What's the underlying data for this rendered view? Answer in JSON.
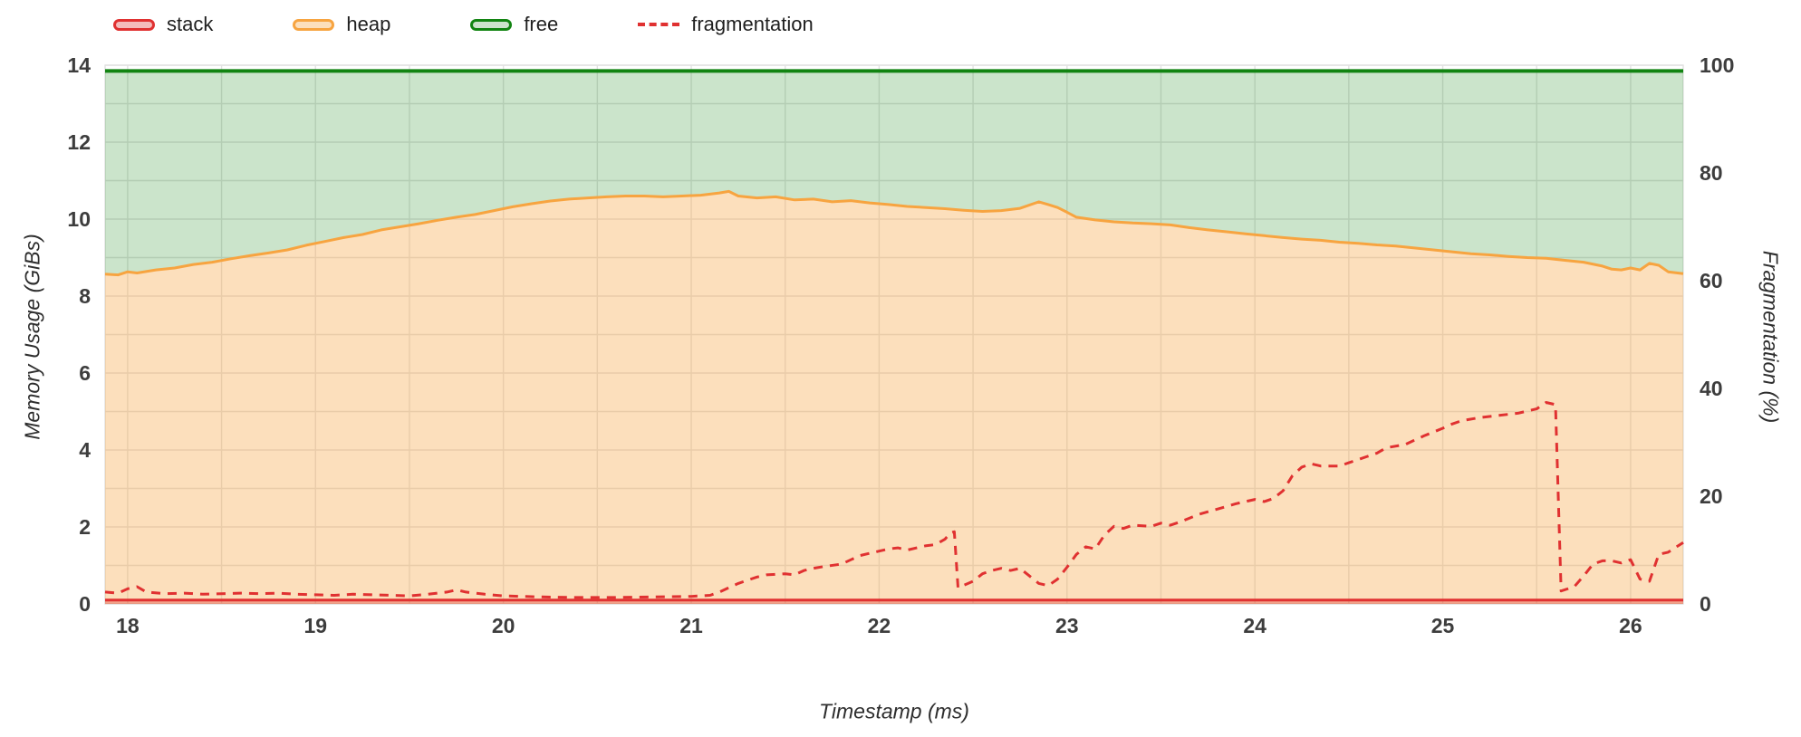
{
  "colors": {
    "grid": "#e2e2e2",
    "tick_label": "#3d3d3d",
    "stack_red": "#e03131",
    "heap_orange": "#f7a440",
    "free_green": "#128412",
    "fragmentation_red": "#e03131"
  },
  "legend": {
    "items": [
      {
        "label": "stack",
        "style": "area",
        "color": "#e03131",
        "fill": "#f4bcbc"
      },
      {
        "label": "heap",
        "style": "area",
        "color": "#f7a440",
        "fill": "#fcdfbc"
      },
      {
        "label": "free",
        "style": "area",
        "color": "#128412",
        "fill": "#cde3cd"
      },
      {
        "label": "fragmentation",
        "style": "dashed",
        "color": "#e03131",
        "fill": "none"
      }
    ]
  },
  "chart_data": {
    "type": "area",
    "title": "",
    "x_axis": {
      "title": "Timestamp (ms)",
      "range": [
        17.88,
        26.28
      ],
      "ticks": [
        18,
        19,
        20,
        21,
        22,
        23,
        24,
        25,
        26
      ],
      "minor_grid_step": 0.5
    },
    "y_axis_left": {
      "title": "Memory Usage (GiBs)",
      "range": [
        0,
        14
      ],
      "ticks": [
        0,
        2,
        4,
        6,
        8,
        10,
        12,
        14
      ],
      "grid_step": 1
    },
    "y_axis_right": {
      "title": "Fragmentation (%)",
      "range": [
        0,
        100
      ],
      "ticks": [
        0,
        20,
        40,
        60,
        80,
        100
      ]
    },
    "grid": true,
    "legend_position": "top-left",
    "series": [
      {
        "name": "stack",
        "type": "area",
        "axis": "left",
        "color": "#e03131",
        "fill": "rgba(224,49,49,0.35)",
        "line_width": 3,
        "points": [
          [
            17.88,
            0.1
          ],
          [
            26.28,
            0.1
          ]
        ]
      },
      {
        "name": "heap",
        "type": "area",
        "axis": "left",
        "color": "#f7a440",
        "fill": "rgba(247,164,64,0.35)",
        "line_width": 3,
        "points": [
          [
            17.88,
            8.57
          ],
          [
            17.95,
            8.55
          ],
          [
            18.0,
            8.63
          ],
          [
            18.05,
            8.6
          ],
          [
            18.15,
            8.68
          ],
          [
            18.25,
            8.73
          ],
          [
            18.35,
            8.82
          ],
          [
            18.45,
            8.88
          ],
          [
            18.55,
            8.97
          ],
          [
            18.65,
            9.05
          ],
          [
            18.75,
            9.12
          ],
          [
            18.85,
            9.2
          ],
          [
            18.95,
            9.32
          ],
          [
            19.05,
            9.42
          ],
          [
            19.15,
            9.52
          ],
          [
            19.25,
            9.6
          ],
          [
            19.35,
            9.72
          ],
          [
            19.45,
            9.8
          ],
          [
            19.55,
            9.88
          ],
          [
            19.65,
            9.97
          ],
          [
            19.75,
            10.05
          ],
          [
            19.85,
            10.12
          ],
          [
            19.95,
            10.22
          ],
          [
            20.05,
            10.32
          ],
          [
            20.15,
            10.4
          ],
          [
            20.25,
            10.47
          ],
          [
            20.35,
            10.52
          ],
          [
            20.45,
            10.55
          ],
          [
            20.55,
            10.58
          ],
          [
            20.65,
            10.6
          ],
          [
            20.75,
            10.6
          ],
          [
            20.85,
            10.58
          ],
          [
            20.95,
            10.6
          ],
          [
            21.05,
            10.62
          ],
          [
            21.15,
            10.68
          ],
          [
            21.2,
            10.72
          ],
          [
            21.25,
            10.6
          ],
          [
            21.35,
            10.55
          ],
          [
            21.45,
            10.58
          ],
          [
            21.55,
            10.5
          ],
          [
            21.65,
            10.52
          ],
          [
            21.75,
            10.45
          ],
          [
            21.85,
            10.48
          ],
          [
            21.95,
            10.42
          ],
          [
            22.05,
            10.38
          ],
          [
            22.15,
            10.33
          ],
          [
            22.25,
            10.3
          ],
          [
            22.35,
            10.27
          ],
          [
            22.45,
            10.23
          ],
          [
            22.55,
            10.2
          ],
          [
            22.65,
            10.22
          ],
          [
            22.75,
            10.28
          ],
          [
            22.85,
            10.45
          ],
          [
            22.9,
            10.38
          ],
          [
            22.95,
            10.3
          ],
          [
            23.0,
            10.18
          ],
          [
            23.05,
            10.05
          ],
          [
            23.15,
            9.98
          ],
          [
            23.25,
            9.93
          ],
          [
            23.35,
            9.9
          ],
          [
            23.45,
            9.88
          ],
          [
            23.55,
            9.85
          ],
          [
            23.65,
            9.78
          ],
          [
            23.75,
            9.72
          ],
          [
            23.85,
            9.67
          ],
          [
            23.95,
            9.62
          ],
          [
            24.05,
            9.57
          ],
          [
            24.15,
            9.52
          ],
          [
            24.25,
            9.48
          ],
          [
            24.35,
            9.45
          ],
          [
            24.45,
            9.4
          ],
          [
            24.55,
            9.37
          ],
          [
            24.65,
            9.33
          ],
          [
            24.75,
            9.3
          ],
          [
            24.85,
            9.25
          ],
          [
            24.95,
            9.2
          ],
          [
            25.05,
            9.15
          ],
          [
            25.15,
            9.1
          ],
          [
            25.25,
            9.07
          ],
          [
            25.35,
            9.03
          ],
          [
            25.45,
            9.0
          ],
          [
            25.55,
            8.98
          ],
          [
            25.65,
            8.93
          ],
          [
            25.75,
            8.88
          ],
          [
            25.85,
            8.78
          ],
          [
            25.9,
            8.7
          ],
          [
            25.95,
            8.68
          ],
          [
            26.0,
            8.73
          ],
          [
            26.05,
            8.68
          ],
          [
            26.1,
            8.85
          ],
          [
            26.15,
            8.8
          ],
          [
            26.2,
            8.63
          ],
          [
            26.28,
            8.58
          ]
        ]
      },
      {
        "name": "free",
        "type": "area_band",
        "axis": "left",
        "color": "#128412",
        "fill": "rgba(18,132,18,0.22)",
        "line_width": 4,
        "note": "band between constant total memory and heap series",
        "top_points": [
          [
            17.88,
            13.85
          ],
          [
            26.28,
            13.85
          ]
        ]
      },
      {
        "name": "fragmentation",
        "type": "dashed_line",
        "axis": "right",
        "color": "#e03131",
        "line_width": 3,
        "points": [
          [
            17.88,
            2.2
          ],
          [
            17.95,
            2.0
          ],
          [
            18.0,
            2.8
          ],
          [
            18.05,
            3.2
          ],
          [
            18.1,
            2.2
          ],
          [
            18.2,
            1.9
          ],
          [
            18.3,
            2.0
          ],
          [
            18.4,
            1.8
          ],
          [
            18.5,
            1.9
          ],
          [
            18.6,
            2.0
          ],
          [
            18.7,
            1.9
          ],
          [
            18.8,
            2.0
          ],
          [
            18.9,
            1.8
          ],
          [
            19.0,
            1.7
          ],
          [
            19.1,
            1.6
          ],
          [
            19.2,
            1.8
          ],
          [
            19.3,
            1.7
          ],
          [
            19.4,
            1.6
          ],
          [
            19.5,
            1.5
          ],
          [
            19.6,
            1.8
          ],
          [
            19.7,
            2.2
          ],
          [
            19.75,
            2.6
          ],
          [
            19.8,
            2.2
          ],
          [
            19.9,
            1.8
          ],
          [
            20.0,
            1.5
          ],
          [
            20.1,
            1.4
          ],
          [
            20.2,
            1.3
          ],
          [
            20.4,
            1.2
          ],
          [
            20.6,
            1.2
          ],
          [
            20.8,
            1.3
          ],
          [
            21.0,
            1.4
          ],
          [
            21.1,
            1.6
          ],
          [
            21.15,
            2.2
          ],
          [
            21.2,
            3.0
          ],
          [
            21.25,
            3.8
          ],
          [
            21.3,
            4.4
          ],
          [
            21.35,
            5.0
          ],
          [
            21.4,
            5.4
          ],
          [
            21.5,
            5.6
          ],
          [
            21.55,
            5.4
          ],
          [
            21.6,
            6.2
          ],
          [
            21.65,
            6.6
          ],
          [
            21.7,
            6.9
          ],
          [
            21.8,
            7.4
          ],
          [
            21.85,
            8.2
          ],
          [
            21.9,
            9.0
          ],
          [
            21.95,
            9.4
          ],
          [
            22.0,
            9.8
          ],
          [
            22.05,
            10.2
          ],
          [
            22.1,
            10.4
          ],
          [
            22.15,
            10.0
          ],
          [
            22.2,
            10.4
          ],
          [
            22.25,
            10.8
          ],
          [
            22.3,
            11.0
          ],
          [
            22.35,
            12.0
          ],
          [
            22.38,
            13.2
          ],
          [
            22.4,
            13.4
          ],
          [
            22.42,
            3.0
          ],
          [
            22.5,
            4.2
          ],
          [
            22.55,
            5.6
          ],
          [
            22.6,
            6.2
          ],
          [
            22.65,
            6.6
          ],
          [
            22.7,
            6.2
          ],
          [
            22.75,
            6.6
          ],
          [
            22.8,
            5.2
          ],
          [
            22.85,
            3.8
          ],
          [
            22.9,
            3.4
          ],
          [
            22.95,
            4.6
          ],
          [
            23.0,
            6.8
          ],
          [
            23.05,
            9.2
          ],
          [
            23.1,
            10.6
          ],
          [
            23.15,
            10.2
          ],
          [
            23.2,
            12.8
          ],
          [
            23.25,
            14.4
          ],
          [
            23.3,
            14.0
          ],
          [
            23.35,
            14.6
          ],
          [
            23.45,
            14.4
          ],
          [
            23.5,
            15.0
          ],
          [
            23.55,
            14.6
          ],
          [
            23.6,
            15.2
          ],
          [
            23.7,
            16.6
          ],
          [
            23.8,
            17.6
          ],
          [
            23.9,
            18.6
          ],
          [
            24.0,
            19.4
          ],
          [
            24.05,
            19.0
          ],
          [
            24.1,
            19.6
          ],
          [
            24.15,
            21.0
          ],
          [
            24.2,
            23.8
          ],
          [
            24.25,
            25.4
          ],
          [
            24.3,
            26.0
          ],
          [
            24.35,
            25.6
          ],
          [
            24.45,
            25.6
          ],
          [
            24.5,
            26.2
          ],
          [
            24.6,
            27.4
          ],
          [
            24.65,
            28.0
          ],
          [
            24.7,
            29.0
          ],
          [
            24.8,
            29.6
          ],
          [
            24.9,
            31.2
          ],
          [
            25.0,
            32.6
          ],
          [
            25.05,
            33.4
          ],
          [
            25.1,
            34.0
          ],
          [
            25.2,
            34.6
          ],
          [
            25.3,
            35.0
          ],
          [
            25.4,
            35.4
          ],
          [
            25.5,
            36.2
          ],
          [
            25.55,
            37.4
          ],
          [
            25.6,
            37.0
          ],
          [
            25.63,
            2.4
          ],
          [
            25.7,
            3.2
          ],
          [
            25.75,
            5.2
          ],
          [
            25.8,
            7.4
          ],
          [
            25.85,
            8.0
          ],
          [
            25.9,
            8.0
          ],
          [
            25.95,
            7.6
          ],
          [
            26.0,
            8.2
          ],
          [
            26.05,
            4.6
          ],
          [
            26.1,
            4.2
          ],
          [
            26.15,
            9.2
          ],
          [
            26.2,
            9.6
          ],
          [
            26.28,
            11.4
          ]
        ]
      }
    ]
  }
}
